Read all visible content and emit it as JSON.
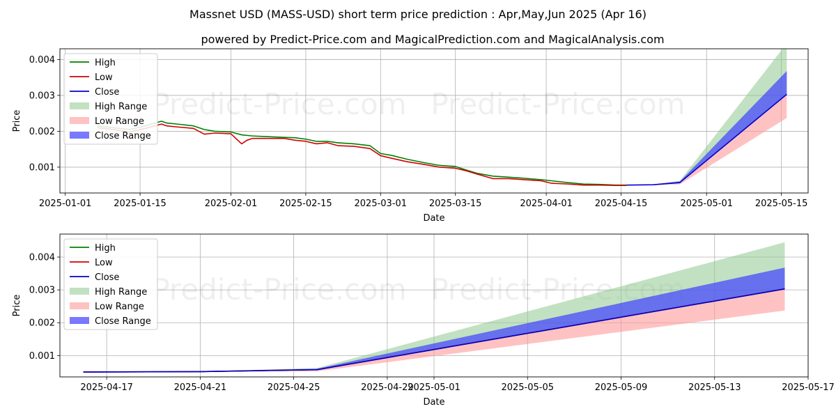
{
  "title": "Massnet USD (MASS-USD) short term price prediction : Apr,May,Jun 2025 (Apr 16)",
  "subtitle": "powered by Predict-Price.com and MagicalPrediction.com and MagicalAnalysis.com",
  "watermark": "Predict-Price.com",
  "colors": {
    "high": "#008000",
    "low": "#d00000",
    "close": "#0000cc",
    "high_range": "#8fc98f",
    "low_range": "#ff9999",
    "close_range": "#4040ff"
  },
  "legend": [
    "High",
    "Low",
    "Close",
    "High Range",
    "Low Range",
    "Close Range"
  ],
  "chart_data": [
    {
      "type": "line",
      "xlabel": "Date",
      "ylabel": "Price",
      "xlim": [
        "2024-12-31",
        "2025-05-20"
      ],
      "ylim": [
        0.00028,
        0.0043
      ],
      "xticks": [
        "2025-01-01",
        "2025-01-15",
        "2025-02-01",
        "2025-02-15",
        "2025-03-01",
        "2025-03-15",
        "2025-04-01",
        "2025-04-15",
        "2025-05-01",
        "2025-05-15"
      ],
      "yticks": [
        0.001,
        0.002,
        0.003,
        0.004
      ],
      "ytick_labels": [
        "0.001",
        "0.002",
        "0.003",
        "0.004"
      ],
      "grid": true,
      "legend_position": "upper-left",
      "series": [
        {
          "name": "High",
          "x": [
            "2025-01-07",
            "2025-01-10",
            "2025-01-13",
            "2025-01-16",
            "2025-01-19",
            "2025-01-20",
            "2025-01-22",
            "2025-01-25",
            "2025-01-27",
            "2025-01-29",
            "2025-02-01",
            "2025-02-03",
            "2025-02-05",
            "2025-02-08",
            "2025-02-11",
            "2025-02-13",
            "2025-02-15",
            "2025-02-17",
            "2025-02-19",
            "2025-02-21",
            "2025-02-24",
            "2025-02-27",
            "2025-03-01",
            "2025-03-03",
            "2025-03-06",
            "2025-03-09",
            "2025-03-12",
            "2025-03-15",
            "2025-03-17",
            "2025-03-19",
            "2025-03-22",
            "2025-03-25",
            "2025-03-28",
            "2025-03-31",
            "2025-04-02",
            "2025-04-05",
            "2025-04-08",
            "2025-04-11",
            "2025-04-14",
            "2025-04-16"
          ],
          "values": [
            0.00215,
            0.0021,
            0.00205,
            0.00215,
            0.00228,
            0.00223,
            0.0022,
            0.00215,
            0.00205,
            0.002,
            0.00198,
            0.0019,
            0.00187,
            0.00185,
            0.00183,
            0.00182,
            0.00178,
            0.00172,
            0.00172,
            0.00168,
            0.00165,
            0.0016,
            0.00138,
            0.00133,
            0.00122,
            0.00113,
            0.00105,
            0.00102,
            0.00092,
            0.00083,
            0.00075,
            0.00072,
            0.00069,
            0.00065,
            0.00062,
            0.00057,
            0.00053,
            0.00052,
            0.0005,
            0.0005
          ]
        },
        {
          "name": "Low",
          "x": [
            "2025-01-07",
            "2025-01-10",
            "2025-01-13",
            "2025-01-16",
            "2025-01-19",
            "2025-01-20",
            "2025-01-22",
            "2025-01-25",
            "2025-01-27",
            "2025-01-29",
            "2025-02-01",
            "2025-02-03",
            "2025-02-04",
            "2025-02-05",
            "2025-02-08",
            "2025-02-11",
            "2025-02-13",
            "2025-02-15",
            "2025-02-17",
            "2025-02-19",
            "2025-02-21",
            "2025-02-24",
            "2025-02-27",
            "2025-03-01",
            "2025-03-03",
            "2025-03-06",
            "2025-03-09",
            "2025-03-12",
            "2025-03-15",
            "2025-03-17",
            "2025-03-19",
            "2025-03-22",
            "2025-03-25",
            "2025-03-28",
            "2025-03-31",
            "2025-04-02",
            "2025-04-05",
            "2025-04-08",
            "2025-04-11",
            "2025-04-14",
            "2025-04-16"
          ],
          "values": [
            0.0021,
            0.00205,
            0.00198,
            0.00208,
            0.0022,
            0.00215,
            0.00212,
            0.00208,
            0.00192,
            0.00195,
            0.00193,
            0.00165,
            0.00175,
            0.0018,
            0.0018,
            0.0018,
            0.00175,
            0.00172,
            0.00165,
            0.00168,
            0.0016,
            0.00158,
            0.00152,
            0.00132,
            0.00125,
            0.00115,
            0.00108,
            0.001,
            0.00097,
            0.0009,
            0.00081,
            0.00068,
            0.00068,
            0.00065,
            0.00062,
            0.00055,
            0.00053,
            0.0005,
            0.0005,
            0.00049,
            0.00049
          ]
        },
        {
          "name": "Close",
          "x": [
            "2025-04-16",
            "2025-04-21",
            "2025-04-26",
            "2025-05-16"
          ],
          "values": [
            0.0005,
            0.00051,
            0.00057,
            0.00303
          ]
        },
        {
          "name": "High Range",
          "x": [
            "2025-04-16",
            "2025-04-21",
            "2025-04-26",
            "2025-05-16"
          ],
          "upper": [
            0.0005,
            0.00052,
            0.00062,
            0.00445
          ],
          "lower": [
            0.0005,
            0.00051,
            0.00057,
            0.00303
          ]
        },
        {
          "name": "Low Range",
          "x": [
            "2025-04-16",
            "2025-04-21",
            "2025-04-26",
            "2025-05-16"
          ],
          "upper": [
            0.0005,
            0.00051,
            0.00057,
            0.00303
          ],
          "lower": [
            0.00049,
            0.0005,
            0.00052,
            0.00237
          ]
        },
        {
          "name": "Close Range",
          "x": [
            "2025-04-16",
            "2025-04-21",
            "2025-04-26",
            "2025-05-16"
          ],
          "upper": [
            0.0005,
            0.00052,
            0.0006,
            0.00368
          ],
          "lower": [
            0.0005,
            0.00051,
            0.00055,
            0.00303
          ]
        }
      ]
    },
    {
      "type": "line",
      "xlabel": "Date",
      "ylabel": "Price",
      "xlim": [
        "2025-04-15",
        "2025-05-17"
      ],
      "ylim": [
        0.00035,
        0.0047
      ],
      "xticks": [
        "2025-04-17",
        "2025-04-21",
        "2025-04-25",
        "2025-04-29",
        "2025-05-01",
        "2025-05-05",
        "2025-05-09",
        "2025-05-13",
        "2025-05-17"
      ],
      "yticks": [
        0.001,
        0.002,
        0.003,
        0.004
      ],
      "ytick_labels": [
        "0.001",
        "0.002",
        "0.003",
        "0.004"
      ],
      "grid": true,
      "legend_position": "upper-left",
      "series": [
        {
          "name": "High",
          "x": [
            "2025-04-16",
            "2025-04-21",
            "2025-04-26",
            "2025-05-16"
          ],
          "values": [
            0.0005,
            0.00051,
            0.00057,
            0.00303
          ]
        },
        {
          "name": "Low",
          "x": [
            "2025-04-16",
            "2025-04-21",
            "2025-04-26",
            "2025-05-16"
          ],
          "values": [
            0.0005,
            0.00051,
            0.00057,
            0.00303
          ]
        },
        {
          "name": "Close",
          "x": [
            "2025-04-16",
            "2025-04-21",
            "2025-04-26",
            "2025-05-16"
          ],
          "values": [
            0.0005,
            0.00051,
            0.00057,
            0.00303
          ]
        },
        {
          "name": "High Range",
          "x": [
            "2025-04-16",
            "2025-04-21",
            "2025-04-26",
            "2025-05-16"
          ],
          "upper": [
            0.0005,
            0.00052,
            0.00062,
            0.00445
          ],
          "lower": [
            0.0005,
            0.00051,
            0.00057,
            0.00303
          ]
        },
        {
          "name": "Low Range",
          "x": [
            "2025-04-16",
            "2025-04-21",
            "2025-04-26",
            "2025-05-16"
          ],
          "upper": [
            0.0005,
            0.00051,
            0.00057,
            0.00303
          ],
          "lower": [
            0.00049,
            0.0005,
            0.00052,
            0.00237
          ]
        },
        {
          "name": "Close Range",
          "x": [
            "2025-04-16",
            "2025-04-21",
            "2025-04-26",
            "2025-05-16"
          ],
          "upper": [
            0.0005,
            0.00052,
            0.0006,
            0.00368
          ],
          "lower": [
            0.0005,
            0.00051,
            0.00055,
            0.00303
          ]
        }
      ]
    }
  ]
}
